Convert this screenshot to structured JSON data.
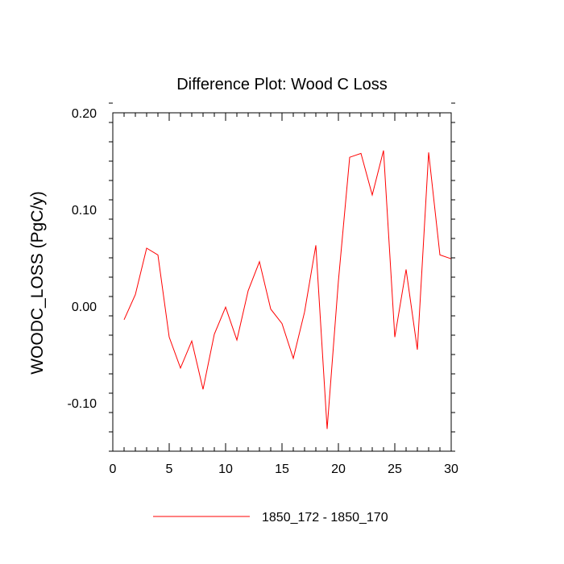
{
  "chart_data": {
    "type": "line",
    "title": "Difference Plot: Wood C Loss",
    "xlabel": "",
    "ylabel": "WOODC_LOSS  (PgC/y)",
    "xlim": [
      0,
      30
    ],
    "ylim": [
      -0.15,
      0.2
    ],
    "x_ticks": [
      0,
      5,
      10,
      15,
      20,
      25,
      30
    ],
    "x_tick_labels": [
      "0",
      "5",
      "10",
      "15",
      "20",
      "25",
      "30"
    ],
    "y_ticks": [
      -0.1,
      0.0,
      0.1,
      0.2
    ],
    "y_tick_labels": [
      "-0.10",
      "0.00",
      "0.10",
      "0.20"
    ],
    "grid": false,
    "legend_position": "bottom",
    "series": [
      {
        "name": "1850_172 - 1850_170",
        "color": "#ff0000",
        "x": [
          1,
          2,
          3,
          4,
          5,
          6,
          7,
          8,
          9,
          10,
          11,
          12,
          13,
          14,
          15,
          16,
          17,
          18,
          19,
          20,
          21,
          22,
          23,
          24,
          25,
          26,
          27,
          28,
          29,
          30
        ],
        "y": [
          -0.014,
          0.012,
          0.06,
          0.053,
          -0.032,
          -0.064,
          -0.036,
          -0.086,
          -0.029,
          -0.001,
          -0.035,
          0.016,
          0.046,
          -0.003,
          -0.018,
          -0.054,
          -0.006,
          0.063,
          -0.127,
          0.026,
          0.154,
          0.158,
          0.115,
          0.161,
          -0.032,
          0.038,
          -0.045,
          0.159,
          0.053,
          0.049
        ]
      }
    ]
  }
}
